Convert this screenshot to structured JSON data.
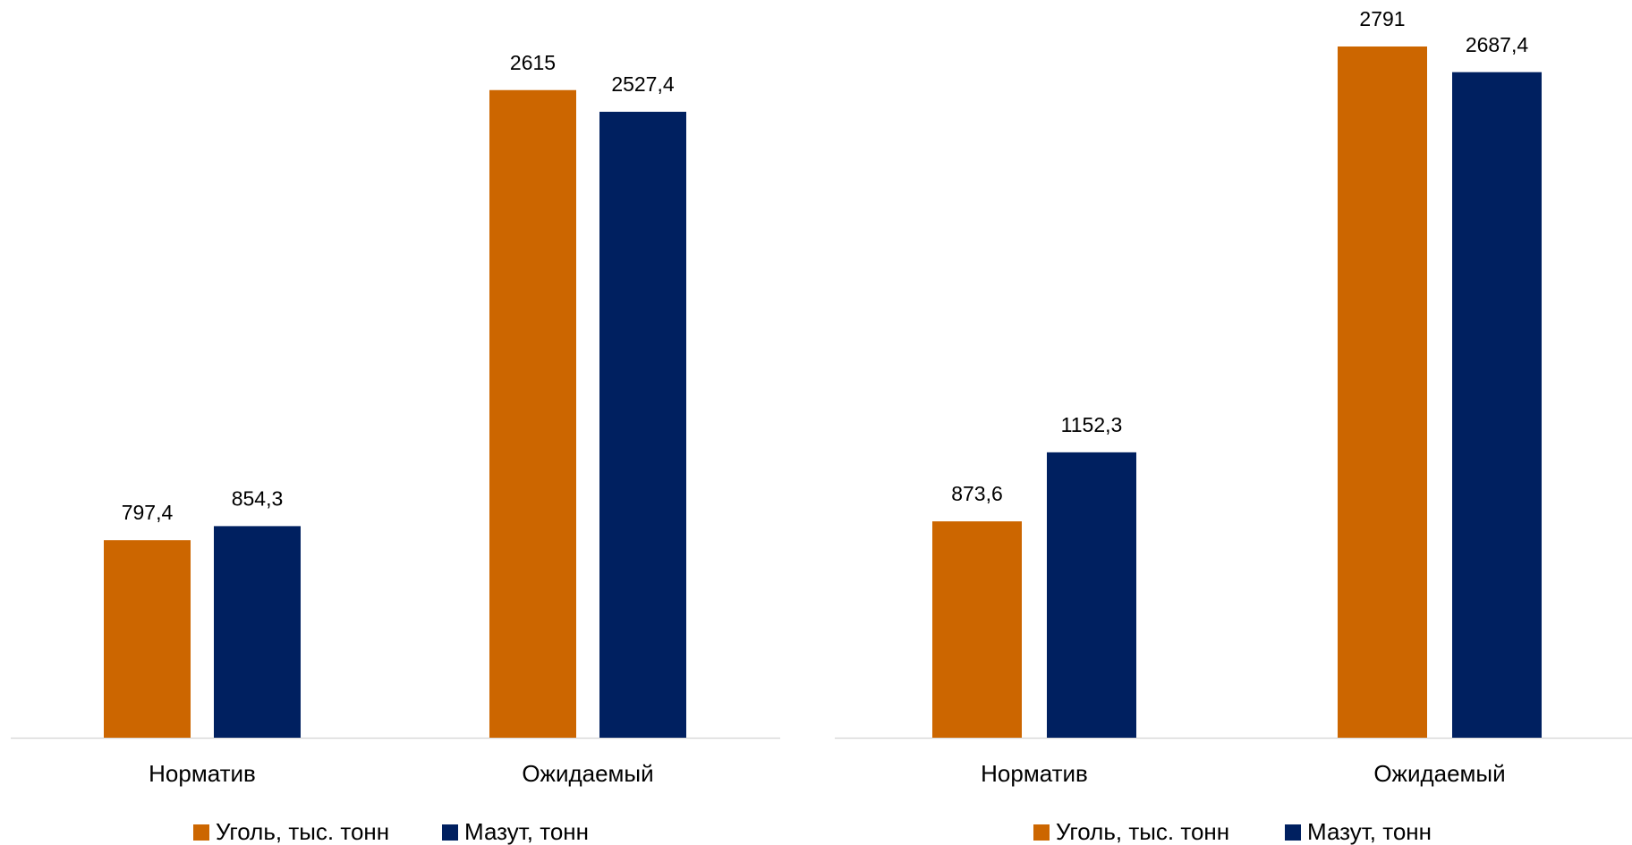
{
  "chart_data": [
    {
      "type": "bar",
      "categories": [
        "Норматив",
        "Ожидаемый"
      ],
      "series": [
        {
          "name": "Уголь, тыс. тонн",
          "color": "#CC6600",
          "values": [
            797.4,
            2615
          ],
          "value_labels": [
            "797,4",
            "2615"
          ]
        },
        {
          "name": "Мазут, тонн",
          "color": "#002060",
          "values": [
            854.3,
            2527.4
          ],
          "value_labels": [
            "854,3",
            "2527,4"
          ]
        }
      ]
    },
    {
      "type": "bar",
      "categories": [
        "Норматив",
        "Ожидаемый"
      ],
      "series": [
        {
          "name": "Уголь, тыс. тонн",
          "color": "#CC6600",
          "values": [
            873.6,
            2791
          ],
          "value_labels": [
            "873,6",
            "2791"
          ]
        },
        {
          "name": "Мазут, тонн",
          "color": "#002060",
          "values": [
            1152.3,
            2687.4
          ],
          "value_labels": [
            "1152,3",
            "2687,4"
          ]
        }
      ]
    }
  ]
}
